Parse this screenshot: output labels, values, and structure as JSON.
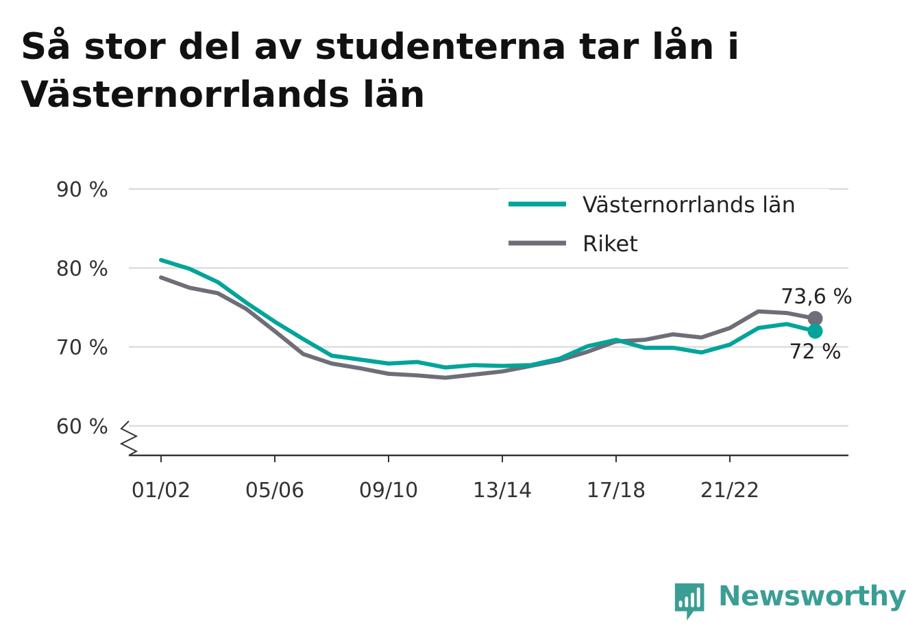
{
  "title": "Så stor del av studenterna tar lån i Västernorrlands län",
  "brand": {
    "name": "Newsworthy",
    "icon": "newsworthy-logo-icon",
    "color": "#3a9e95"
  },
  "chart_data": {
    "type": "line",
    "categories": [
      "01/02",
      "02/03",
      "03/04",
      "04/05",
      "05/06",
      "06/07",
      "07/08",
      "08/09",
      "09/10",
      "10/11",
      "11/12",
      "12/13",
      "13/14",
      "14/15",
      "15/16",
      "16/17",
      "17/18",
      "18/19",
      "19/20",
      "20/21",
      "21/22",
      "22/23",
      "23/24",
      "24/25"
    ],
    "x_tick_labels": [
      "01/02",
      "05/06",
      "09/10",
      "13/14",
      "17/18",
      "21/22"
    ],
    "ylim": [
      60,
      90
    ],
    "y_ticks": [
      60,
      70,
      80,
      90
    ],
    "y_tick_labels": [
      "60 %",
      "70 %",
      "80 %",
      "90 %"
    ],
    "y_axis_break": true,
    "grid": true,
    "legend_position": "top-right",
    "series": [
      {
        "name": "Västernorrlands län",
        "color": "#00a49a",
        "values": [
          81.0,
          79.9,
          78.2,
          75.6,
          73.2,
          71.0,
          68.9,
          68.4,
          67.9,
          68.1,
          67.4,
          67.7,
          67.6,
          67.7,
          68.5,
          70.1,
          70.9,
          69.9,
          69.9,
          69.3,
          70.3,
          72.4,
          72.9,
          72.0
        ],
        "end_label": "72 %"
      },
      {
        "name": "Riket",
        "color": "#6e6e78",
        "values": [
          78.8,
          77.5,
          76.8,
          74.8,
          72.0,
          69.1,
          67.9,
          67.3,
          66.6,
          66.4,
          66.1,
          66.5,
          66.9,
          67.6,
          68.3,
          69.4,
          70.7,
          70.9,
          71.6,
          71.2,
          72.4,
          74.5,
          74.3,
          73.6
        ],
        "end_label": "73,6 %"
      }
    ]
  }
}
